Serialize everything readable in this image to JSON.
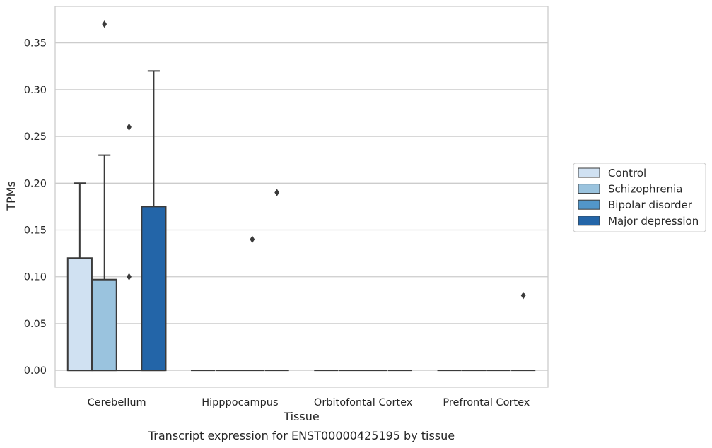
{
  "chart_data": {
    "type": "box",
    "caption": "Transcript expression for ENST00000425195 by tissue",
    "xlabel": "Tissue",
    "ylabel": "TPMs",
    "ylim": [
      -0.018,
      0.389
    ],
    "yticks": [
      0.0,
      0.05,
      0.1,
      0.15,
      0.2,
      0.25,
      0.3,
      0.35
    ],
    "ytick_labels": [
      "0.00",
      "0.05",
      "0.10",
      "0.15",
      "0.20",
      "0.25",
      "0.30",
      "0.35"
    ],
    "grid": true,
    "legend_position": "center-right outside",
    "categories": [
      "Cerebellum",
      "Hipppocampus",
      "Orbitofontal Cortex",
      "Prefrontal Cortex"
    ],
    "series": [
      {
        "name": "Control",
        "color": "#d0e1f2",
        "boxes": [
          {
            "min": 0.0,
            "q1": 0.0,
            "median": 0.0,
            "q3": 0.12,
            "max": 0.2,
            "outliers": []
          },
          {
            "min": 0.0,
            "q1": 0.0,
            "median": 0.0,
            "q3": 0.0,
            "max": 0.0,
            "outliers": []
          },
          {
            "min": 0.0,
            "q1": 0.0,
            "median": 0.0,
            "q3": 0.0,
            "max": 0.0,
            "outliers": []
          },
          {
            "min": 0.0,
            "q1": 0.0,
            "median": 0.0,
            "q3": 0.0,
            "max": 0.0,
            "outliers": []
          }
        ]
      },
      {
        "name": "Schizophrenia",
        "color": "#9ac3de",
        "boxes": [
          {
            "min": 0.0,
            "q1": 0.0,
            "median": 0.0,
            "q3": 0.097,
            "max": 0.23,
            "outliers": [
              0.37
            ]
          },
          {
            "min": 0.0,
            "q1": 0.0,
            "median": 0.0,
            "q3": 0.0,
            "max": 0.0,
            "outliers": []
          },
          {
            "min": 0.0,
            "q1": 0.0,
            "median": 0.0,
            "q3": 0.0,
            "max": 0.0,
            "outliers": []
          },
          {
            "min": 0.0,
            "q1": 0.0,
            "median": 0.0,
            "q3": 0.0,
            "max": 0.0,
            "outliers": []
          }
        ]
      },
      {
        "name": "Bipolar disorder",
        "color": "#5296c9",
        "boxes": [
          {
            "min": 0.0,
            "q1": 0.0,
            "median": 0.0,
            "q3": 0.0,
            "max": 0.0,
            "outliers": [
              0.1,
              0.26
            ]
          },
          {
            "min": 0.0,
            "q1": 0.0,
            "median": 0.0,
            "q3": 0.0,
            "max": 0.0,
            "outliers": [
              0.14
            ]
          },
          {
            "min": 0.0,
            "q1": 0.0,
            "median": 0.0,
            "q3": 0.0,
            "max": 0.0,
            "outliers": []
          },
          {
            "min": 0.0,
            "q1": 0.0,
            "median": 0.0,
            "q3": 0.0,
            "max": 0.0,
            "outliers": []
          }
        ]
      },
      {
        "name": "Major depression",
        "color": "#2365a8",
        "boxes": [
          {
            "min": 0.0,
            "q1": 0.0,
            "median": 0.0,
            "q3": 0.175,
            "max": 0.32,
            "outliers": []
          },
          {
            "min": 0.0,
            "q1": 0.0,
            "median": 0.0,
            "q3": 0.0,
            "max": 0.0,
            "outliers": [
              0.19
            ]
          },
          {
            "min": 0.0,
            "q1": 0.0,
            "median": 0.0,
            "q3": 0.0,
            "max": 0.0,
            "outliers": []
          },
          {
            "min": 0.0,
            "q1": 0.0,
            "median": 0.0,
            "q3": 0.0,
            "max": 0.0,
            "outliers": [
              0.08
            ]
          }
        ]
      }
    ]
  }
}
